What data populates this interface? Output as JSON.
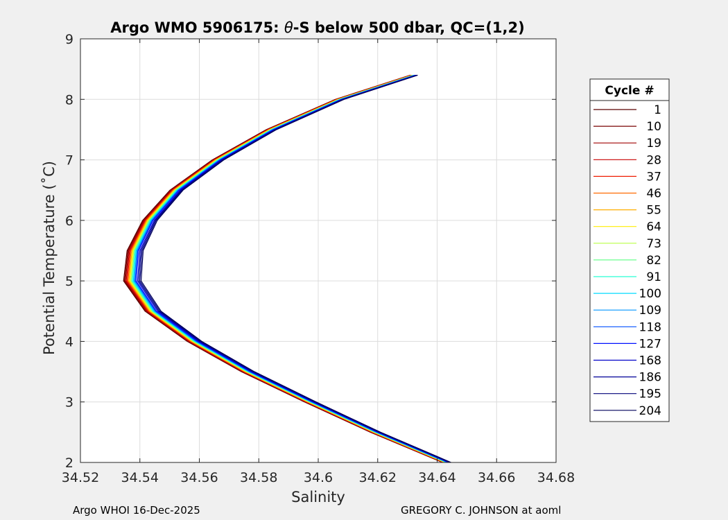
{
  "chart_data": {
    "type": "line",
    "title_prefix": "Argo WMO 5906175: ",
    "title_symbol": "θ",
    "title_suffix": "-S below 500 dbar,  QC=(1,2)",
    "xlabel": "Salinity",
    "ylabel": "Potential Temperature (˚C)",
    "xlim": [
      34.52,
      34.68
    ],
    "ylim": [
      2,
      9
    ],
    "xticks": [
      "34.52",
      "34.54",
      "34.56",
      "34.58",
      "34.6",
      "34.62",
      "34.64",
      "34.66",
      "34.68"
    ],
    "yticks": [
      "2",
      "3",
      "4",
      "5",
      "6",
      "7",
      "8",
      "9"
    ],
    "grid": true,
    "legend_title": "Cycle #",
    "legend_placement": "right-outside",
    "series": [
      {
        "name": "1",
        "color": "#5a0000",
        "offset": -0.0025
      },
      {
        "name": "10",
        "color": "#7a0000",
        "offset": -0.0022
      },
      {
        "name": "19",
        "color": "#a00000",
        "offset": -0.0019
      },
      {
        "name": "28",
        "color": "#c80000",
        "offset": -0.0016
      },
      {
        "name": "37",
        "color": "#ee1b00",
        "offset": -0.0013
      },
      {
        "name": "46",
        "color": "#ff6a00",
        "offset": -0.001
      },
      {
        "name": "55",
        "color": "#ffae00",
        "offset": -0.0007
      },
      {
        "name": "64",
        "color": "#ffee00",
        "offset": -0.0004
      },
      {
        "name": "73",
        "color": "#b8ff45",
        "offset": -0.0001
      },
      {
        "name": "82",
        "color": "#6bff8f",
        "offset": 0.0002
      },
      {
        "name": "91",
        "color": "#27ffd4",
        "offset": 0.0005
      },
      {
        "name": "100",
        "color": "#00dcff",
        "offset": 0.0008
      },
      {
        "name": "109",
        "color": "#0096ff",
        "offset": 0.0011
      },
      {
        "name": "118",
        "color": "#0050ff",
        "offset": 0.0014
      },
      {
        "name": "127",
        "color": "#0010ff",
        "offset": 0.0017
      },
      {
        "name": "168",
        "color": "#0000c8",
        "offset": 0.0022
      },
      {
        "name": "186",
        "color": "#000098",
        "offset": 0.0026
      },
      {
        "name": "195",
        "color": "#000078",
        "offset": 0.003
      },
      {
        "name": "204",
        "color": "#00005a",
        "offset": 0.0034
      }
    ],
    "base_curve": {
      "theta": [
        2.0,
        2.5,
        3.0,
        3.5,
        4.0,
        4.5,
        5.0,
        5.5,
        6.0,
        6.5,
        7.0,
        7.5,
        8.0,
        8.4
      ],
      "salinity": [
        34.643,
        34.619,
        34.597,
        34.576,
        34.558,
        34.544,
        34.537,
        34.538,
        34.543,
        34.552,
        34.566,
        34.584,
        34.607,
        34.632
      ]
    }
  },
  "footer": {
    "left": "Argo WHOI 16-Dec-2025",
    "right": "GREGORY C. JOHNSON at aoml"
  }
}
